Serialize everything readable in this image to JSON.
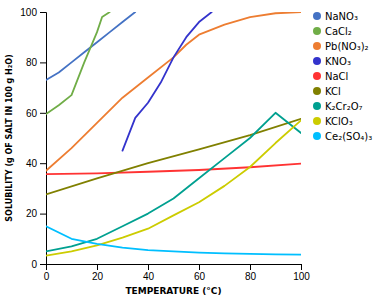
{
  "chart_data": {
    "type": "line",
    "xlabel": "TEMPERATURE (°C)",
    "ylabel": "SOLUBILITY (g OF SALT IN 100 g H₂O)",
    "xlim": [
      0,
      100
    ],
    "ylim": [
      0,
      100
    ],
    "xticks": [
      0,
      20,
      40,
      60,
      80,
      100
    ],
    "yticks": [
      0,
      20,
      40,
      60,
      80,
      100
    ],
    "grid": false,
    "legend": "right",
    "series": [
      {
        "name": "NaNO₃",
        "color": "#4472C4",
        "x": [
          0,
          5,
          10,
          15,
          20,
          25,
          30,
          35
        ],
        "values": [
          73,
          76,
          80,
          84,
          88,
          92,
          96,
          100
        ]
      },
      {
        "name": "CaCl₂",
        "color": "#70AD47",
        "x": [
          0,
          5,
          10,
          15,
          20,
          22,
          25
        ],
        "values": [
          59.5,
          63,
          67,
          80,
          92,
          98,
          100
        ]
      },
      {
        "name": "Pb(NO₃)₂",
        "color": "#ED7D31",
        "x": [
          0,
          10,
          20,
          30,
          40,
          50,
          55,
          60,
          70,
          80,
          90,
          100
        ],
        "values": [
          37,
          46,
          56,
          66,
          74,
          82,
          87,
          91,
          95,
          98,
          99.5,
          100
        ]
      },
      {
        "name": "KNO₃",
        "color": "#3333CC",
        "x": [
          30,
          35,
          40,
          45,
          50,
          55,
          60,
          65
        ],
        "values": [
          45,
          58,
          64,
          72,
          82,
          90,
          96,
          100
        ]
      },
      {
        "name": "NaCl",
        "color": "#FF3333",
        "x": [
          0,
          20,
          40,
          60,
          80,
          100
        ],
        "values": [
          35.7,
          36.0,
          36.6,
          37.3,
          38.4,
          39.8
        ]
      },
      {
        "name": "KCl",
        "color": "#808000",
        "x": [
          0,
          20,
          40,
          60,
          80,
          100
        ],
        "values": [
          27.6,
          34.0,
          40.0,
          45.5,
          51.1,
          57.6
        ]
      },
      {
        "name": "K₂Cr₂O₇",
        "color": "#00A090",
        "x": [
          0,
          10,
          20,
          30,
          40,
          50,
          60,
          70,
          80,
          90,
          100
        ],
        "values": [
          5.0,
          7.0,
          10.0,
          15.0,
          20.0,
          26.0,
          34.0,
          42.0,
          50.0,
          60.0,
          52.0
        ]
      },
      {
        "name": "KClO₃",
        "color": "#CCCC00",
        "x": [
          0,
          10,
          20,
          30,
          40,
          50,
          60,
          70,
          80,
          90,
          100
        ],
        "values": [
          3.3,
          5.0,
          7.4,
          10.5,
          14.0,
          19.3,
          24.5,
          31.0,
          38.5,
          48.0,
          57.0
        ]
      },
      {
        "name": "Ce₂(SO₄)₃",
        "color": "#00BFFF",
        "x": [
          0,
          10,
          20,
          30,
          40,
          50,
          60,
          70,
          80,
          90,
          100
        ],
        "values": [
          15.0,
          10.0,
          8.0,
          6.5,
          5.5,
          5.0,
          4.5,
          4.2,
          4.0,
          3.8,
          3.7
        ]
      }
    ]
  }
}
